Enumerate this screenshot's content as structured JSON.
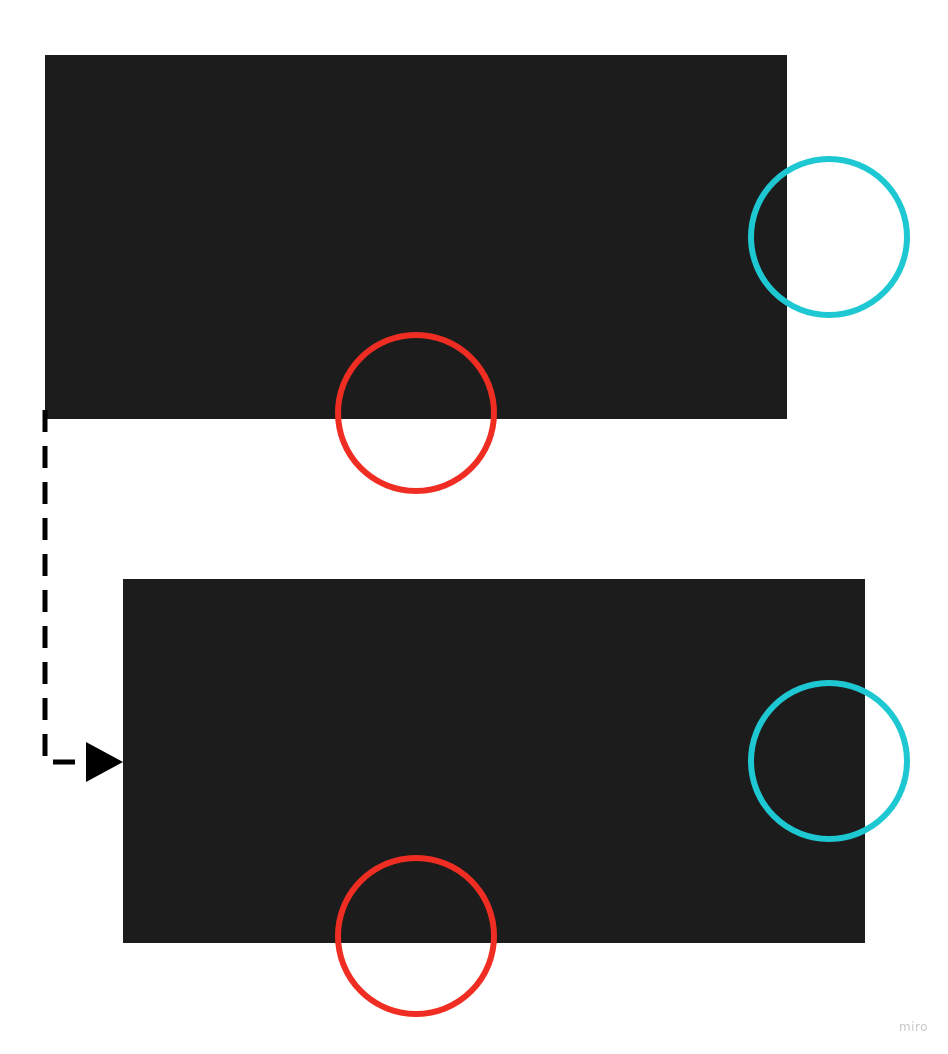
{
  "board": {
    "background": "#ffffff",
    "shape_fill": "#1c1c1c",
    "connector_color": "#000000"
  },
  "shapes": [
    {
      "id": "top-rect",
      "label": ""
    },
    {
      "id": "bottom-rect",
      "label": ""
    }
  ],
  "markers": {
    "cyan_color": "#1ec8d2",
    "red_color": "#f02d23"
  },
  "connector": {
    "style": "dashed",
    "arrowhead": "triangle"
  },
  "watermark": {
    "text": "miro",
    "color": "#c8c8c8"
  }
}
